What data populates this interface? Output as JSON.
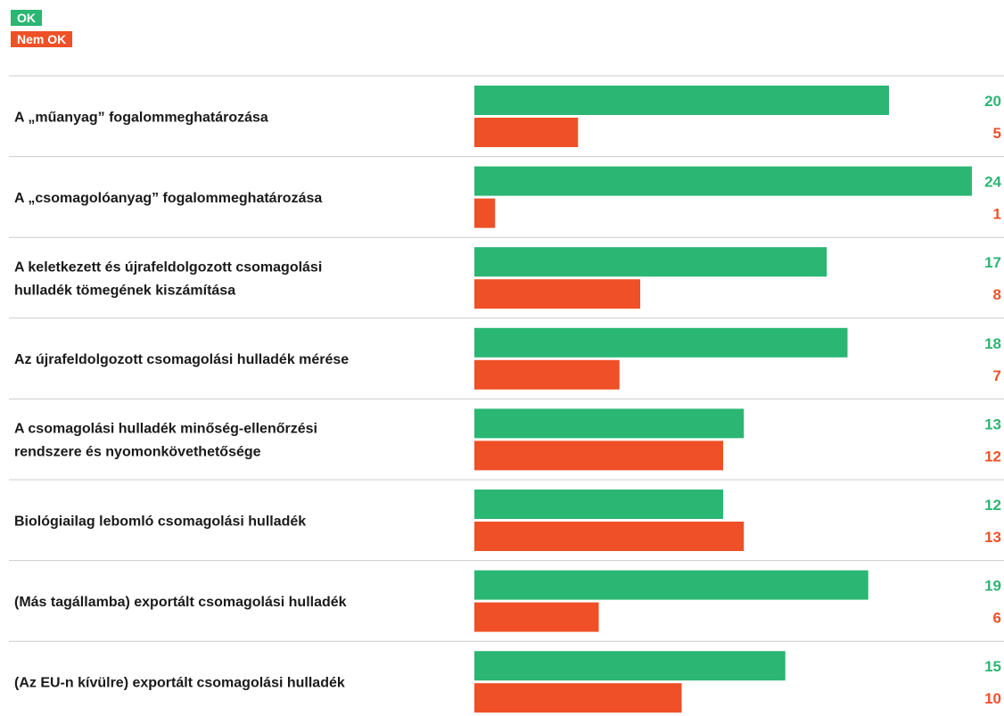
{
  "colors": {
    "ok": "#2bb673",
    "not_ok": "#ef5027",
    "divider": "#cccccc",
    "text": "#1a1a1a"
  },
  "legend": {
    "ok_label": "OK",
    "not_ok_label": "Nem OK"
  },
  "chart_data": {
    "type": "bar",
    "orientation": "horizontal",
    "legend_position": "top-left",
    "grid": false,
    "xlim": [
      0,
      24
    ],
    "categories": [
      [
        "A „műanyag” fogalommeghatározása"
      ],
      [
        "A „csomagolóanyag” fogalommeghatározása"
      ],
      [
        "A keletkezett és újrafeldolgozott csomagolási",
        "hulladék tömegének kiszámítása"
      ],
      [
        "Az újrafeldolgozott csomagolási hulladék mérése"
      ],
      [
        "A csomagolási hulladék minőség-ellenőrzési",
        "rendszere és nyomonkövethetősége"
      ],
      [
        "Biológiailag lebomló csomagolási hulladék"
      ],
      [
        "(Más tagállamba) exportált csomagolási hulladék"
      ],
      [
        "(Az EU-n kívülre) exportált csomagolási hulladék"
      ]
    ],
    "series": [
      {
        "name": "OK",
        "values": [
          20,
          24,
          17,
          18,
          13,
          12,
          19,
          15
        ]
      },
      {
        "name": "Nem OK",
        "values": [
          5,
          1,
          8,
          7,
          12,
          13,
          6,
          10
        ]
      }
    ]
  }
}
